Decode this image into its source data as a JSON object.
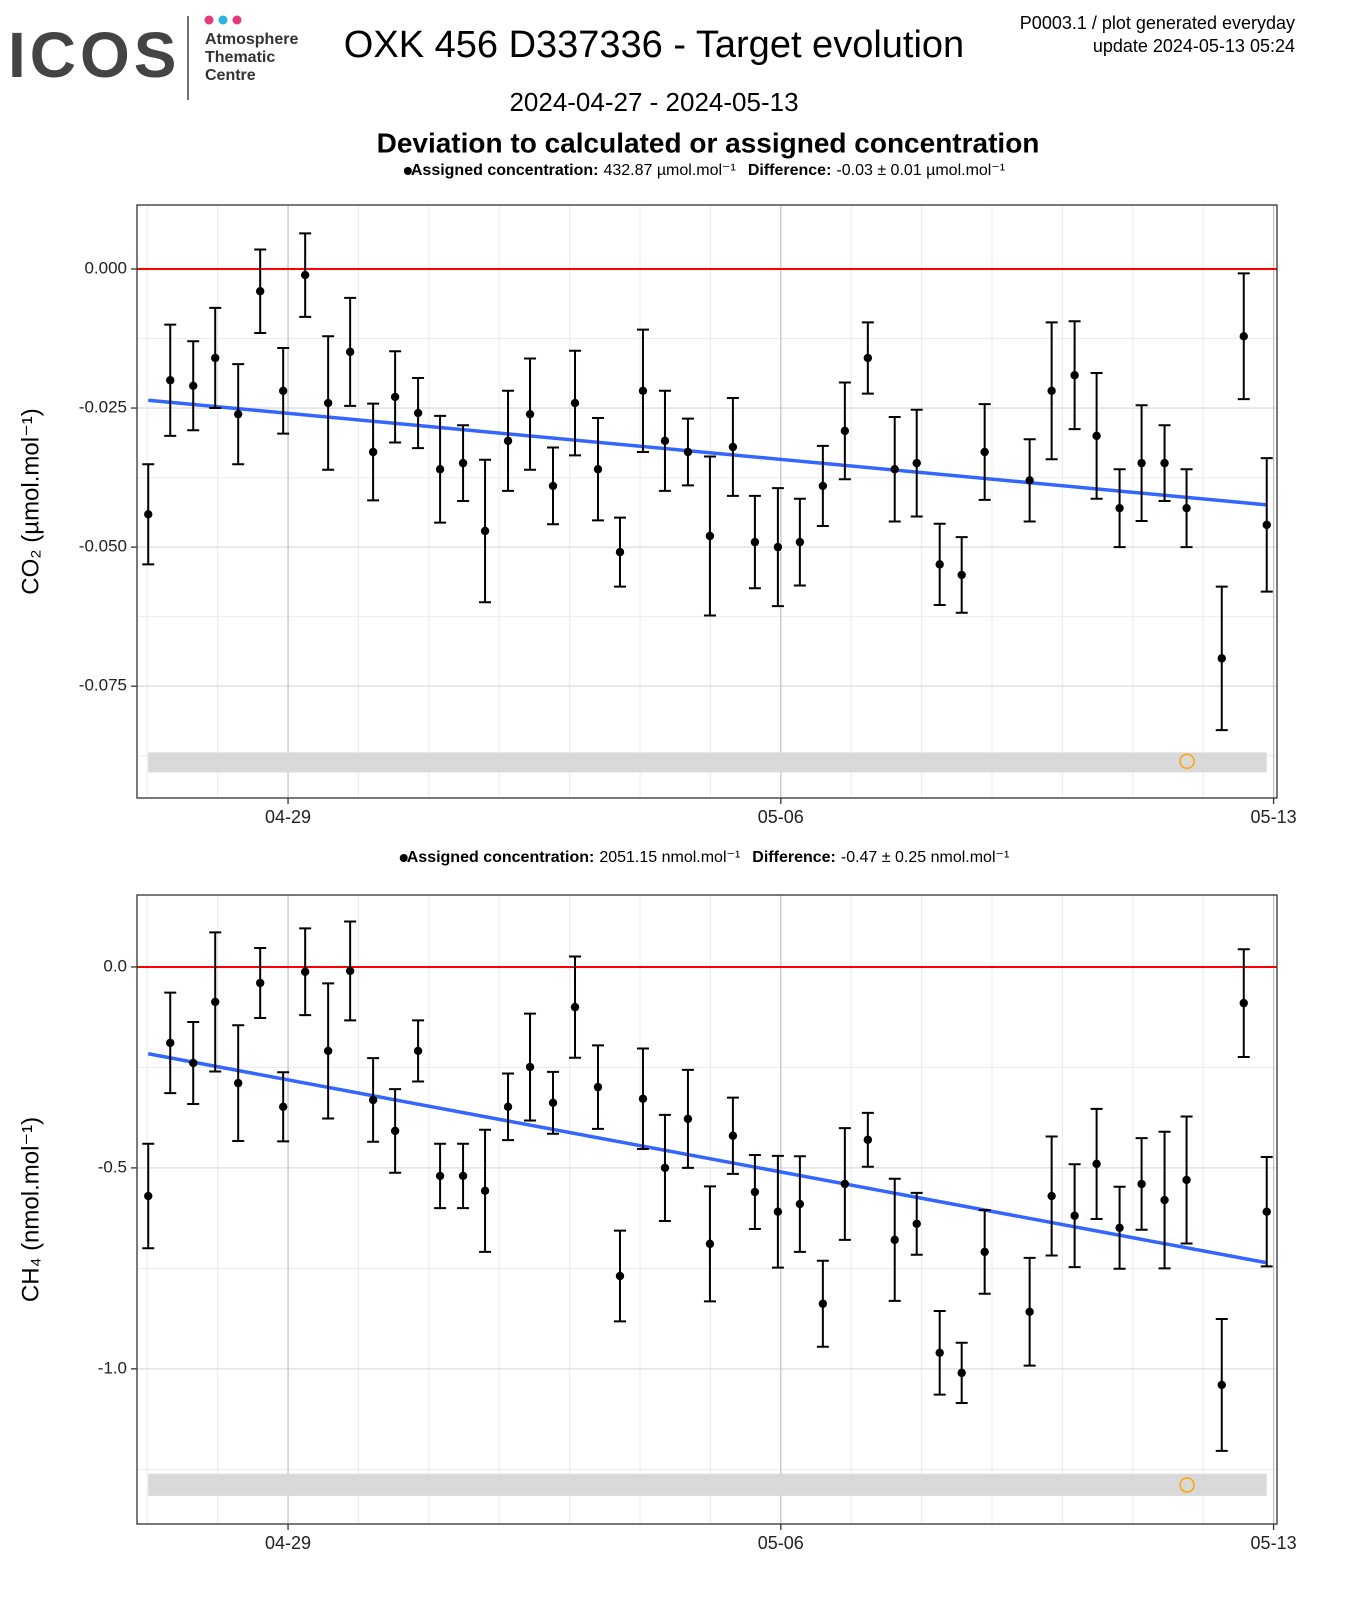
{
  "header": {
    "logo_text": "ICOS",
    "logo_lines": [
      "Atmosphere",
      "Thematic",
      "Centre"
    ],
    "title": "OXK 456 D337336 - Target evolution",
    "info": [
      "P0003.1 / plot generated everyday",
      "update  2024-05-13 05:24"
    ],
    "subtitle": "2024-04-27 - 2024-05-13",
    "heading": "Deviation to calculated or assigned concentration"
  },
  "chart_data": [
    {
      "type": "errorbar",
      "annotation": {
        "assigned_label": "Assigned concentration:",
        "assigned_value": "432.87 µmol.mol⁻¹",
        "difference_label": "Difference:",
        "difference_value": "-0.03 ± 0.01 µmol.mol⁻¹"
      },
      "ylabel": "CO₂ (µmol.mol⁻¹)",
      "color": "#000000",
      "grid": true,
      "x": [
        "04-27 00:20",
        "04-27 07:50",
        "04-27 15:40",
        "04-27 23:10",
        "04-28 07:00",
        "04-28 14:30",
        "04-28 22:20",
        "04-29 05:50",
        "04-29 13:40",
        "04-29 21:10",
        "04-30 05:00",
        "04-30 12:30",
        "04-30 20:20",
        "05-01 03:50",
        "05-01 11:40",
        "05-01 19:10",
        "05-02 03:00",
        "05-02 10:30",
        "05-02 18:20",
        "05-03 01:50",
        "05-03 09:40",
        "05-03 17:10",
        "05-04 01:00",
        "05-04 08:30",
        "05-04 16:20",
        "05-04 23:50",
        "05-05 07:40",
        "05-05 15:10",
        "05-05 23:00",
        "05-06 06:30",
        "05-06 14:20",
        "05-06 21:50",
        "05-07 05:40",
        "05-07 14:50",
        "05-07 22:20",
        "05-08 06:10",
        "05-08 13:40",
        "05-08 21:30",
        "05-09 12:50",
        "05-09 20:20",
        "05-10 04:10",
        "05-10 11:40",
        "05-10 19:30",
        "05-11 03:00",
        "05-11 10:50",
        "05-11 18:20",
        "05-12 06:20",
        "05-12 13:50",
        "05-12 21:40"
      ],
      "values": [
        -0.0441,
        -0.02,
        -0.021,
        -0.016,
        -0.0261,
        -0.004,
        -0.0219,
        -0.0011,
        -0.0241,
        -0.0149,
        -0.0329,
        -0.023,
        -0.0259,
        -0.036,
        -0.0349,
        -0.0471,
        -0.0309,
        -0.0261,
        -0.039,
        -0.0241,
        -0.036,
        -0.0509,
        -0.0219,
        -0.0309,
        -0.0329,
        -0.048,
        -0.032,
        -0.0491,
        -0.05,
        -0.0491,
        -0.039,
        -0.0291,
        -0.016,
        -0.036,
        -0.0349,
        -0.0531,
        -0.055,
        -0.0329,
        -0.038,
        -0.0219,
        -0.0191,
        -0.03,
        -0.043,
        -0.0349,
        -0.0349,
        -0.043,
        -0.07,
        -0.0121,
        -0.046
      ],
      "errors": [
        0.009,
        0.01,
        0.008,
        0.009,
        0.009,
        0.0075,
        0.0077,
        0.0075,
        0.012,
        0.0097,
        0.0087,
        0.0082,
        0.0063,
        0.0096,
        0.0068,
        0.0128,
        0.009,
        0.01,
        0.0069,
        0.0094,
        0.0092,
        0.0062,
        0.011,
        0.009,
        0.006,
        0.0143,
        0.0088,
        0.0083,
        0.0106,
        0.0078,
        0.0072,
        0.0087,
        0.0064,
        0.0094,
        0.0096,
        0.0073,
        0.0068,
        0.0086,
        0.0074,
        0.0123,
        0.0097,
        0.0113,
        0.007,
        0.0104,
        0.0068,
        0.007,
        0.0129,
        0.0113,
        0.012
      ],
      "xlim": [
        "04-26 20:30",
        "05-13 01:10"
      ],
      "xticks": [
        "04-29",
        "05-06",
        "05-13"
      ],
      "ylim": [
        -0.0951,
        0.0115
      ],
      "yticks": [
        {
          "value": -0.075,
          "label": "-0.075"
        },
        {
          "value": -0.05,
          "label": "-0.050"
        },
        {
          "value": -0.025,
          "label": "-0.025"
        },
        {
          "value": 0,
          "label": "0.000"
        }
      ],
      "reference_line": {
        "value": 0,
        "color": "#ff0000"
      },
      "trend": {
        "x": [
          "04-27 00:20",
          "05-12 21:40"
        ],
        "values": [
          -0.0236,
          -0.0424
        ],
        "color": "#3366ff"
      },
      "band": {
        "x": [
          "04-27 00:20",
          "05-12 21:40"
        ],
        "values": [
          -0.0869,
          -0.0905
        ],
        "color": "#d9d9d9"
      },
      "marker": {
        "x": "05-11 18:30",
        "value": -0.0885,
        "color": "#ffa500"
      }
    },
    {
      "type": "errorbar",
      "annotation": {
        "assigned_label": "Assigned concentration:",
        "assigned_value": "2051.15 nmol.mol⁻¹",
        "difference_label": "Difference:",
        "difference_value": "-0.47 ± 0.25 nmol.mol⁻¹"
      },
      "ylabel": "CH₄ (nmol.mol⁻¹)",
      "color": "#000000",
      "grid": true,
      "x": [
        "04-27 00:20",
        "04-27 07:50",
        "04-27 15:40",
        "04-27 23:10",
        "04-28 07:00",
        "04-28 14:30",
        "04-28 22:20",
        "04-29 05:50",
        "04-29 13:40",
        "04-29 21:10",
        "04-30 05:00",
        "04-30 12:30",
        "04-30 20:20",
        "05-01 03:50",
        "05-01 11:40",
        "05-01 19:10",
        "05-02 03:00",
        "05-02 10:30",
        "05-02 18:20",
        "05-03 01:50",
        "05-03 09:40",
        "05-03 17:10",
        "05-04 01:00",
        "05-04 08:30",
        "05-04 16:20",
        "05-04 23:50",
        "05-05 07:40",
        "05-05 15:10",
        "05-05 23:00",
        "05-06 06:30",
        "05-06 14:20",
        "05-06 21:50",
        "05-07 05:40",
        "05-07 14:50",
        "05-07 22:20",
        "05-08 06:10",
        "05-08 13:40",
        "05-08 21:30",
        "05-09 12:50",
        "05-09 20:20",
        "05-10 04:10",
        "05-10 11:40",
        "05-10 19:30",
        "05-11 03:00",
        "05-11 10:50",
        "05-11 18:20",
        "05-12 06:20",
        "05-12 13:50",
        "05-12 21:40"
      ],
      "values": [
        -0.57,
        -0.189,
        -0.239,
        -0.087,
        -0.289,
        -0.04,
        -0.348,
        -0.012,
        -0.209,
        -0.01,
        -0.331,
        -0.408,
        -0.209,
        -0.52,
        -0.52,
        -0.557,
        -0.348,
        -0.249,
        -0.338,
        -0.1,
        -0.299,
        -0.769,
        -0.328,
        -0.5,
        -0.378,
        -0.689,
        -0.42,
        -0.56,
        -0.609,
        -0.59,
        -0.838,
        -0.54,
        -0.43,
        -0.679,
        -0.639,
        -0.96,
        -1.01,
        -0.709,
        -0.858,
        -0.57,
        -0.619,
        -0.49,
        -0.649,
        -0.54,
        -0.58,
        -0.53,
        -1.04,
        -0.09,
        -0.609
      ],
      "errors": [
        0.13,
        0.125,
        0.102,
        0.173,
        0.144,
        0.087,
        0.086,
        0.108,
        0.168,
        0.123,
        0.104,
        0.104,
        0.076,
        0.08,
        0.08,
        0.152,
        0.083,
        0.133,
        0.077,
        0.126,
        0.104,
        0.113,
        0.125,
        0.132,
        0.122,
        0.143,
        0.095,
        0.092,
        0.139,
        0.119,
        0.107,
        0.139,
        0.067,
        0.152,
        0.077,
        0.104,
        0.075,
        0.104,
        0.134,
        0.148,
        0.128,
        0.137,
        0.102,
        0.114,
        0.17,
        0.158,
        0.164,
        0.134,
        0.136
      ],
      "xlim": [
        "04-26 20:30",
        "05-13 01:10"
      ],
      "xticks": [
        "04-29",
        "05-06",
        "05-13"
      ],
      "ylim": [
        -1.386,
        0.179
      ],
      "yticks": [
        {
          "value": -1,
          "label": "-1.0"
        },
        -0.5,
        {
          "value": 0,
          "label": "0.0"
        }
      ],
      "reference_line": {
        "value": 0,
        "color": "#ff0000"
      },
      "trend": {
        "x": [
          "04-27 00:20",
          "05-12 21:40"
        ],
        "values": [
          -0.216,
          -0.736
        ],
        "color": "#3366ff"
      },
      "band": {
        "x": [
          "04-27 00:20",
          "05-12 21:40"
        ],
        "values": [
          -1.261,
          -1.316
        ],
        "color": "#d9d9d9"
      },
      "marker": {
        "x": "05-11 18:30",
        "value": -1.289,
        "color": "#ffa500"
      }
    }
  ]
}
